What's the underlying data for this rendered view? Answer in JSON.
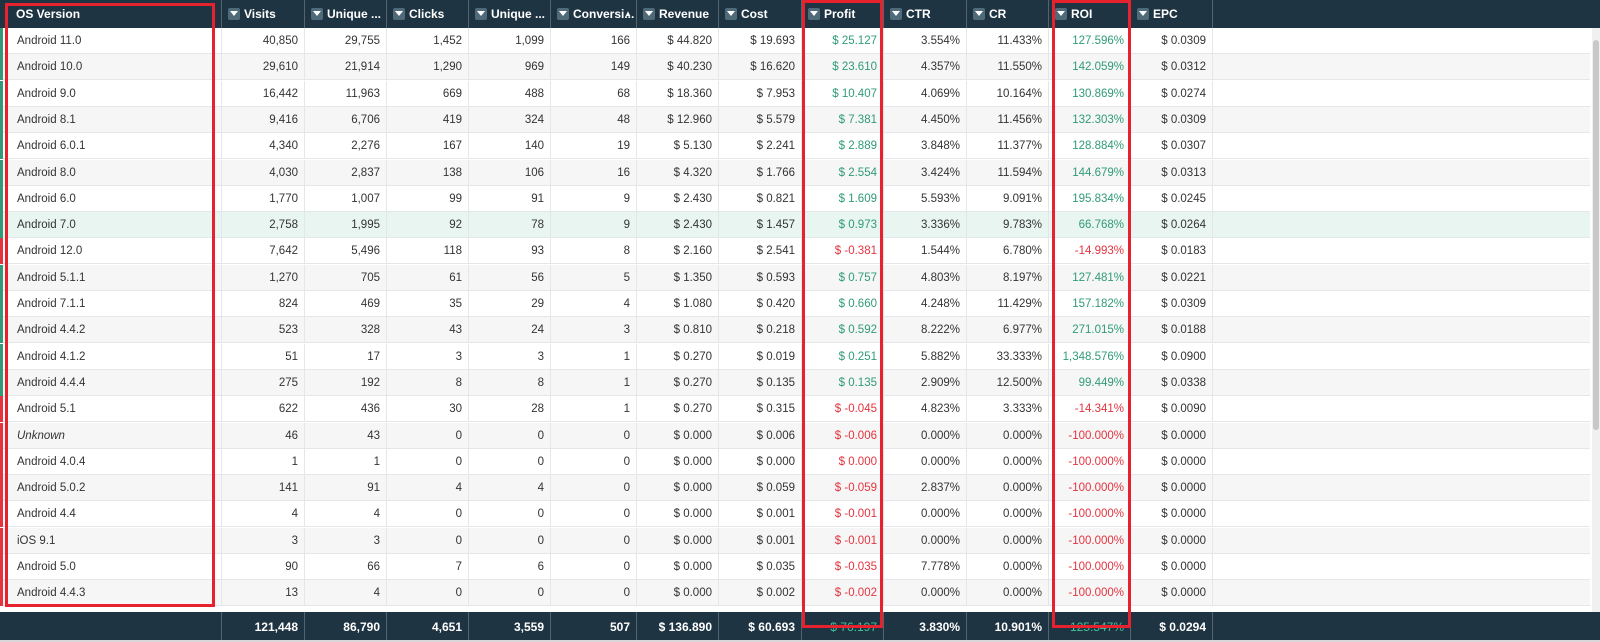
{
  "columns": [
    {
      "label": "OS Version",
      "align": "left",
      "sort": ""
    },
    {
      "label": "Visits",
      "align": "right",
      "sort": ""
    },
    {
      "label": "Unique ...",
      "align": "right",
      "sort": ""
    },
    {
      "label": "Clicks",
      "align": "right",
      "sort": ""
    },
    {
      "label": "Unique ...",
      "align": "right",
      "sort": ""
    },
    {
      "label": "Conversi...",
      "align": "right",
      "sort": "desc"
    },
    {
      "label": "Revenue",
      "align": "right",
      "sort": ""
    },
    {
      "label": "Cost",
      "align": "right",
      "sort": ""
    },
    {
      "label": "Profit",
      "align": "right",
      "sort": ""
    },
    {
      "label": "CTR",
      "align": "right",
      "sort": ""
    },
    {
      "label": "CR",
      "align": "right",
      "sort": ""
    },
    {
      "label": "ROI",
      "align": "right",
      "sort": ""
    },
    {
      "label": "EPC",
      "align": "right",
      "sort": ""
    }
  ],
  "rows": [
    {
      "os": "Android 11.0",
      "visits": "40,850",
      "unique_visits": "29,755",
      "clicks": "1,452",
      "unique_clicks": "1,099",
      "conversions": "166",
      "revenue": "$ 44.820",
      "cost": "$ 19.693",
      "profit": "$ 25.127",
      "ctr": "3.554%",
      "cr": "11.433%",
      "roi": "127.596%",
      "epc": "$ 0.0309",
      "status": "pos"
    },
    {
      "os": "Android 10.0",
      "visits": "29,610",
      "unique_visits": "21,914",
      "clicks": "1,290",
      "unique_clicks": "969",
      "conversions": "149",
      "revenue": "$ 40.230",
      "cost": "$ 16.620",
      "profit": "$ 23.610",
      "ctr": "4.357%",
      "cr": "11.550%",
      "roi": "142.059%",
      "epc": "$ 0.0312",
      "status": "pos"
    },
    {
      "os": "Android 9.0",
      "visits": "16,442",
      "unique_visits": "11,963",
      "clicks": "669",
      "unique_clicks": "488",
      "conversions": "68",
      "revenue": "$ 18.360",
      "cost": "$ 7.953",
      "profit": "$ 10.407",
      "ctr": "4.069%",
      "cr": "10.164%",
      "roi": "130.869%",
      "epc": "$ 0.0274",
      "status": "pos"
    },
    {
      "os": "Android 8.1",
      "visits": "9,416",
      "unique_visits": "6,706",
      "clicks": "419",
      "unique_clicks": "324",
      "conversions": "48",
      "revenue": "$ 12.960",
      "cost": "$ 5.579",
      "profit": "$ 7.381",
      "ctr": "4.450%",
      "cr": "11.456%",
      "roi": "132.303%",
      "epc": "$ 0.0309",
      "status": "pos"
    },
    {
      "os": "Android 6.0.1",
      "visits": "4,340",
      "unique_visits": "2,276",
      "clicks": "167",
      "unique_clicks": "140",
      "conversions": "19",
      "revenue": "$ 5.130",
      "cost": "$ 2.241",
      "profit": "$ 2.889",
      "ctr": "3.848%",
      "cr": "11.377%",
      "roi": "128.884%",
      "epc": "$ 0.0307",
      "status": "pos"
    },
    {
      "os": "Android 8.0",
      "visits": "4,030",
      "unique_visits": "2,837",
      "clicks": "138",
      "unique_clicks": "106",
      "conversions": "16",
      "revenue": "$ 4.320",
      "cost": "$ 1.766",
      "profit": "$ 2.554",
      "ctr": "3.424%",
      "cr": "11.594%",
      "roi": "144.679%",
      "epc": "$ 0.0313",
      "status": "pos"
    },
    {
      "os": "Android 6.0",
      "visits": "1,770",
      "unique_visits": "1,007",
      "clicks": "99",
      "unique_clicks": "91",
      "conversions": "9",
      "revenue": "$ 2.430",
      "cost": "$ 0.821",
      "profit": "$ 1.609",
      "ctr": "5.593%",
      "cr": "9.091%",
      "roi": "195.834%",
      "epc": "$ 0.0245",
      "status": "pos"
    },
    {
      "os": "Android 7.0",
      "visits": "2,758",
      "unique_visits": "1,995",
      "clicks": "92",
      "unique_clicks": "78",
      "conversions": "9",
      "revenue": "$ 2.430",
      "cost": "$ 1.457",
      "profit": "$ 0.973",
      "ctr": "3.336%",
      "cr": "9.783%",
      "roi": "66.768%",
      "epc": "$ 0.0264",
      "status": "pos",
      "selected": true
    },
    {
      "os": "Android 12.0",
      "visits": "7,642",
      "unique_visits": "5,496",
      "clicks": "118",
      "unique_clicks": "93",
      "conversions": "8",
      "revenue": "$ 2.160",
      "cost": "$ 2.541",
      "profit": "$ -0.381",
      "ctr": "1.544%",
      "cr": "6.780%",
      "roi": "-14.993%",
      "epc": "$ 0.0183",
      "status": "neg"
    },
    {
      "os": "Android 5.1.1",
      "visits": "1,270",
      "unique_visits": "705",
      "clicks": "61",
      "unique_clicks": "56",
      "conversions": "5",
      "revenue": "$ 1.350",
      "cost": "$ 0.593",
      "profit": "$ 0.757",
      "ctr": "4.803%",
      "cr": "8.197%",
      "roi": "127.481%",
      "epc": "$ 0.0221",
      "status": "pos"
    },
    {
      "os": "Android 7.1.1",
      "visits": "824",
      "unique_visits": "469",
      "clicks": "35",
      "unique_clicks": "29",
      "conversions": "4",
      "revenue": "$ 1.080",
      "cost": "$ 0.420",
      "profit": "$ 0.660",
      "ctr": "4.248%",
      "cr": "11.429%",
      "roi": "157.182%",
      "epc": "$ 0.0309",
      "status": "pos"
    },
    {
      "os": "Android 4.4.2",
      "visits": "523",
      "unique_visits": "328",
      "clicks": "43",
      "unique_clicks": "24",
      "conversions": "3",
      "revenue": "$ 0.810",
      "cost": "$ 0.218",
      "profit": "$ 0.592",
      "ctr": "8.222%",
      "cr": "6.977%",
      "roi": "271.015%",
      "epc": "$ 0.0188",
      "status": "pos"
    },
    {
      "os": "Android 4.1.2",
      "visits": "51",
      "unique_visits": "17",
      "clicks": "3",
      "unique_clicks": "3",
      "conversions": "1",
      "revenue": "$ 0.270",
      "cost": "$ 0.019",
      "profit": "$ 0.251",
      "ctr": "5.882%",
      "cr": "33.333%",
      "roi": "1,348.576%",
      "epc": "$ 0.0900",
      "status": "pos"
    },
    {
      "os": "Android 4.4.4",
      "visits": "275",
      "unique_visits": "192",
      "clicks": "8",
      "unique_clicks": "8",
      "conversions": "1",
      "revenue": "$ 0.270",
      "cost": "$ 0.135",
      "profit": "$ 0.135",
      "ctr": "2.909%",
      "cr": "12.500%",
      "roi": "99.449%",
      "epc": "$ 0.0338",
      "status": "pos"
    },
    {
      "os": "Android 5.1",
      "visits": "622",
      "unique_visits": "436",
      "clicks": "30",
      "unique_clicks": "28",
      "conversions": "1",
      "revenue": "$ 0.270",
      "cost": "$ 0.315",
      "profit": "$ -0.045",
      "ctr": "4.823%",
      "cr": "3.333%",
      "roi": "-14.341%",
      "epc": "$ 0.0090",
      "status": "neg"
    },
    {
      "os": "Unknown",
      "visits": "46",
      "unique_visits": "43",
      "clicks": "0",
      "unique_clicks": "0",
      "conversions": "0",
      "revenue": "$ 0.000",
      "cost": "$ 0.006",
      "profit": "$ -0.006",
      "ctr": "0.000%",
      "cr": "0.000%",
      "roi": "-100.000%",
      "epc": "$ 0.0000",
      "status": "neg",
      "italic": true
    },
    {
      "os": "Android 4.0.4",
      "visits": "1",
      "unique_visits": "1",
      "clicks": "0",
      "unique_clicks": "0",
      "conversions": "0",
      "revenue": "$ 0.000",
      "cost": "$ 0.000",
      "profit": "$ 0.000",
      "ctr": "0.000%",
      "cr": "0.000%",
      "roi": "-100.000%",
      "epc": "$ 0.0000",
      "status": "neg"
    },
    {
      "os": "Android 5.0.2",
      "visits": "141",
      "unique_visits": "91",
      "clicks": "4",
      "unique_clicks": "4",
      "conversions": "0",
      "revenue": "$ 0.000",
      "cost": "$ 0.059",
      "profit": "$ -0.059",
      "ctr": "2.837%",
      "cr": "0.000%",
      "roi": "-100.000%",
      "epc": "$ 0.0000",
      "status": "neg"
    },
    {
      "os": "Android 4.4",
      "visits": "4",
      "unique_visits": "4",
      "clicks": "0",
      "unique_clicks": "0",
      "conversions": "0",
      "revenue": "$ 0.000",
      "cost": "$ 0.001",
      "profit": "$ -0.001",
      "ctr": "0.000%",
      "cr": "0.000%",
      "roi": "-100.000%",
      "epc": "$ 0.0000",
      "status": "neg"
    },
    {
      "os": "iOS 9.1",
      "visits": "3",
      "unique_visits": "3",
      "clicks": "0",
      "unique_clicks": "0",
      "conversions": "0",
      "revenue": "$ 0.000",
      "cost": "$ 0.001",
      "profit": "$ -0.001",
      "ctr": "0.000%",
      "cr": "0.000%",
      "roi": "-100.000%",
      "epc": "$ 0.0000",
      "status": "neg"
    },
    {
      "os": "Android 5.0",
      "visits": "90",
      "unique_visits": "66",
      "clicks": "7",
      "unique_clicks": "6",
      "conversions": "0",
      "revenue": "$ 0.000",
      "cost": "$ 0.035",
      "profit": "$ -0.035",
      "ctr": "7.778%",
      "cr": "0.000%",
      "roi": "-100.000%",
      "epc": "$ 0.0000",
      "status": "neg"
    },
    {
      "os": "Android 4.4.3",
      "visits": "13",
      "unique_visits": "4",
      "clicks": "0",
      "unique_clicks": "0",
      "conversions": "0",
      "revenue": "$ 0.000",
      "cost": "$ 0.002",
      "profit": "$ -0.002",
      "ctr": "0.000%",
      "cr": "0.000%",
      "roi": "-100.000%",
      "epc": "$ 0.0000",
      "status": "neg"
    }
  ],
  "totals": {
    "visits": "121,448",
    "unique_visits": "86,790",
    "clicks": "4,651",
    "unique_clicks": "3,559",
    "conversions": "507",
    "revenue": "$ 136.890",
    "cost": "$ 60.693",
    "profit": "$ 76.197",
    "ctr": "3.830%",
    "cr": "10.901%",
    "roi": "125.547%",
    "epc": "$ 0.0294"
  },
  "colors": {
    "header_bg": "#1f3442",
    "positive": "#2f9b77",
    "negative": "#e3343f",
    "highlight_box": "#e6222e",
    "selected_row": "#e9f5f1"
  }
}
